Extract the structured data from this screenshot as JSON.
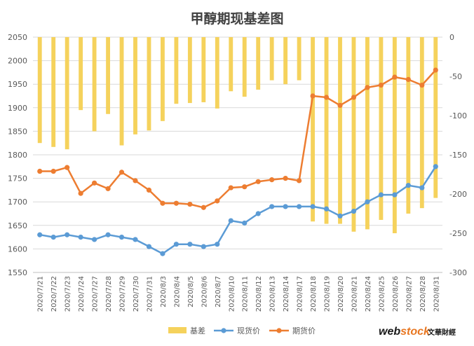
{
  "chart_data": {
    "type": "bar+line",
    "title": "甲醇期现基差图",
    "categories": [
      "2020/7/21",
      "2020/7/22",
      "2020/7/23",
      "2020/7/24",
      "2020/7/27",
      "2020/7/28",
      "2020/7/29",
      "2020/7/30",
      "2020/7/31",
      "2020/8/3",
      "2020/8/4",
      "2020/8/5",
      "2020/8/6",
      "2020/8/7",
      "2020/8/10",
      "2020/8/11",
      "2020/8/12",
      "2020/8/13",
      "2020/8/14",
      "2020/8/17",
      "2020/8/18",
      "2020/8/19",
      "2020/8/20",
      "2020/8/21",
      "2020/8/24",
      "2020/8/25",
      "2020/8/26",
      "2020/8/27",
      "2020/8/28",
      "2020/8/31"
    ],
    "left_axis": {
      "min": 1550,
      "max": 2050,
      "step": 50,
      "ticks": [
        "1550",
        "1600",
        "1650",
        "1700",
        "1750",
        "1800",
        "1850",
        "1900",
        "1950",
        "2000",
        "2050"
      ]
    },
    "right_axis": {
      "min": -300,
      "max": 0,
      "step": 50,
      "ticks": [
        "-300",
        "-250",
        "-200",
        "-150",
        "-100",
        "-50",
        "0"
      ]
    },
    "series": [
      {
        "name": "基差",
        "type": "bar",
        "axis": "right",
        "color": "#F5D25C",
        "values": [
          -135,
          -140,
          -143,
          -93,
          -120,
          -98,
          -138,
          -124,
          -119,
          -107,
          -85,
          -84,
          -83,
          -91,
          -69,
          -76,
          -67,
          -55,
          -60,
          -55,
          -235,
          -238,
          -238,
          -248,
          -245,
          -233,
          -250,
          -225,
          -218,
          -205
        ]
      },
      {
        "name": "现货价",
        "type": "line",
        "axis": "left",
        "color": "#5B9BD5",
        "values": [
          1630,
          1625,
          1630,
          1625,
          1620,
          1630,
          1625,
          1620,
          1605,
          1590,
          1610,
          1610,
          1605,
          1610,
          1660,
          1655,
          1675,
          1690,
          1690,
          1690,
          1690,
          1685,
          1670,
          1680,
          1700,
          1715,
          1715,
          1735,
          1730,
          1775
        ]
      },
      {
        "name": "期货价",
        "type": "line",
        "axis": "left",
        "color": "#ED7D31",
        "values": [
          1765,
          1765,
          1773,
          1718,
          1740,
          1728,
          1763,
          1745,
          1725,
          1697,
          1697,
          1695,
          1688,
          1702,
          1730,
          1732,
          1743,
          1747,
          1750,
          1745,
          1925,
          1922,
          1905,
          1922,
          1943,
          1948,
          1965,
          1960,
          1948,
          1980
        ]
      }
    ],
    "legend_position": "bottom",
    "grid": true
  },
  "watermark": {
    "brand": "web",
    "brand_highlight": "stock",
    "brand_cn": "文華財經"
  }
}
